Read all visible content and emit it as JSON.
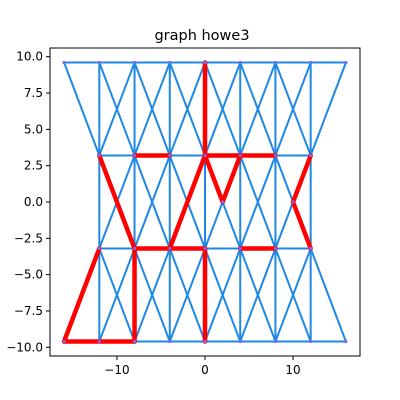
{
  "chart_data": {
    "type": "graph",
    "title": "graph howe3",
    "xlabel": "",
    "ylabel": "",
    "xlim": [
      -17.6,
      17.6
    ],
    "ylim": [
      -10.6,
      10.6
    ],
    "x_ticks": [
      -10,
      0,
      10
    ],
    "x_tick_labels": [
      "−10",
      "0",
      "10"
    ],
    "y_ticks": [
      10.0,
      7.5,
      5.0,
      2.5,
      0.0,
      -2.5,
      -5.0,
      -7.5,
      -10.0
    ],
    "y_tick_labels": [
      "10.0",
      "7.5",
      "5.0",
      "2.5",
      "0.0",
      "−2.5",
      "−5.0",
      "−7.5",
      "−10.0"
    ],
    "grid": false,
    "legend": "none",
    "edge_color": "#1f88e5",
    "highlight_color": "#ff0000",
    "node_color": "#7b68ee",
    "edges": [
      [
        [
          -16,
          9.6
        ],
        [
          16,
          9.6
        ]
      ],
      [
        [
          -16,
          -9.6
        ],
        [
          16,
          -9.6
        ]
      ],
      [
        [
          -12,
          3.2
        ],
        [
          12,
          3.2
        ]
      ],
      [
        [
          -12,
          -3.2
        ],
        [
          12,
          -3.2
        ]
      ],
      [
        [
          -12,
          9.6
        ],
        [
          -12,
          -9.6
        ]
      ],
      [
        [
          -8,
          9.6
        ],
        [
          -8,
          -9.6
        ]
      ],
      [
        [
          -4,
          9.6
        ],
        [
          -4,
          -9.6
        ]
      ],
      [
        [
          0,
          9.6
        ],
        [
          0,
          -9.6
        ]
      ],
      [
        [
          4,
          9.6
        ],
        [
          4,
          -9.6
        ]
      ],
      [
        [
          8,
          9.6
        ],
        [
          8,
          -9.6
        ]
      ],
      [
        [
          12,
          9.6
        ],
        [
          12,
          -9.6
        ]
      ],
      [
        [
          -16,
          9.6
        ],
        [
          -12,
          3.2
        ]
      ],
      [
        [
          -12,
          9.6
        ],
        [
          -8,
          3.2
        ]
      ],
      [
        [
          -8,
          9.6
        ],
        [
          -4,
          3.2
        ]
      ],
      [
        [
          -4,
          9.6
        ],
        [
          0,
          3.2
        ]
      ],
      [
        [
          0,
          9.6
        ],
        [
          4,
          3.2
        ]
      ],
      [
        [
          4,
          9.6
        ],
        [
          8,
          3.2
        ]
      ],
      [
        [
          8,
          9.6
        ],
        [
          12,
          3.2
        ]
      ],
      [
        [
          16,
          9.6
        ],
        [
          12,
          3.2
        ]
      ],
      [
        [
          -8,
          9.6
        ],
        [
          -12,
          3.2
        ]
      ],
      [
        [
          -4,
          9.6
        ],
        [
          -8,
          3.2
        ]
      ],
      [
        [
          0,
          9.6
        ],
        [
          -4,
          3.2
        ]
      ],
      [
        [
          4,
          9.6
        ],
        [
          0,
          3.2
        ]
      ],
      [
        [
          8,
          9.6
        ],
        [
          4,
          3.2
        ]
      ],
      [
        [
          12,
          9.6
        ],
        [
          8,
          3.2
        ]
      ],
      [
        [
          -16,
          -9.6
        ],
        [
          -12,
          -3.2
        ]
      ],
      [
        [
          -12,
          -9.6
        ],
        [
          -8,
          -3.2
        ]
      ],
      [
        [
          -8,
          -9.6
        ],
        [
          -4,
          -3.2
        ]
      ],
      [
        [
          -4,
          -9.6
        ],
        [
          0,
          -3.2
        ]
      ],
      [
        [
          0,
          -9.6
        ],
        [
          4,
          -3.2
        ]
      ],
      [
        [
          4,
          -9.6
        ],
        [
          8,
          -3.2
        ]
      ],
      [
        [
          8,
          -9.6
        ],
        [
          12,
          -3.2
        ]
      ],
      [
        [
          16,
          -9.6
        ],
        [
          12,
          -3.2
        ]
      ],
      [
        [
          -8,
          -9.6
        ],
        [
          -12,
          -3.2
        ]
      ],
      [
        [
          -4,
          -9.6
        ],
        [
          -8,
          -3.2
        ]
      ],
      [
        [
          0,
          -9.6
        ],
        [
          -4,
          -3.2
        ]
      ],
      [
        [
          4,
          -9.6
        ],
        [
          0,
          -3.2
        ]
      ],
      [
        [
          8,
          -9.6
        ],
        [
          4,
          -3.2
        ]
      ],
      [
        [
          12,
          -9.6
        ],
        [
          8,
          -3.2
        ]
      ],
      [
        [
          -12,
          3.2
        ],
        [
          -8,
          -3.2
        ]
      ],
      [
        [
          -8,
          3.2
        ],
        [
          -4,
          -3.2
        ]
      ],
      [
        [
          -4,
          3.2
        ],
        [
          0,
          -3.2
        ]
      ],
      [
        [
          0,
          3.2
        ],
        [
          4,
          -3.2
        ]
      ],
      [
        [
          4,
          3.2
        ],
        [
          8,
          -3.2
        ]
      ],
      [
        [
          8,
          3.2
        ],
        [
          12,
          -3.2
        ]
      ],
      [
        [
          -8,
          3.2
        ],
        [
          -12,
          -3.2
        ]
      ],
      [
        [
          -4,
          3.2
        ],
        [
          -8,
          -3.2
        ]
      ],
      [
        [
          0,
          3.2
        ],
        [
          -4,
          -3.2
        ]
      ],
      [
        [
          4,
          3.2
        ],
        [
          0,
          -3.2
        ]
      ],
      [
        [
          8,
          3.2
        ],
        [
          4,
          -3.2
        ]
      ],
      [
        [
          12,
          3.2
        ],
        [
          8,
          -3.2
        ]
      ]
    ],
    "highlighted_edges": [
      [
        [
          0,
          9.6
        ],
        [
          0,
          3.2
        ]
      ],
      [
        [
          -8,
          3.2
        ],
        [
          -4,
          3.2
        ]
      ],
      [
        [
          0,
          3.2
        ],
        [
          8,
          3.2
        ]
      ],
      [
        [
          0,
          3.2
        ],
        [
          2,
          0
        ]
      ],
      [
        [
          2,
          0
        ],
        [
          4,
          3.2
        ]
      ],
      [
        [
          0,
          3.2
        ],
        [
          -4,
          -3.2
        ]
      ],
      [
        [
          -12,
          3.2
        ],
        [
          -8,
          -3.2
        ]
      ],
      [
        [
          -8,
          -3.2
        ],
        [
          0,
          -3.2
        ]
      ],
      [
        [
          0,
          -3.2
        ],
        [
          0,
          -9.6
        ]
      ],
      [
        [
          4,
          -3.2
        ],
        [
          8,
          -3.2
        ]
      ],
      [
        [
          12,
          3.2
        ],
        [
          10,
          0
        ]
      ],
      [
        [
          10,
          0
        ],
        [
          12,
          -3.2
        ]
      ],
      [
        [
          -12,
          -3.2
        ],
        [
          -16,
          -9.6
        ]
      ],
      [
        [
          -16,
          -9.6
        ],
        [
          -8,
          -9.6
        ]
      ],
      [
        [
          -8,
          -9.6
        ],
        [
          -8,
          -3.2
        ]
      ]
    ],
    "nodes": [
      [
        -16,
        9.6
      ],
      [
        -12,
        9.6
      ],
      [
        -8,
        9.6
      ],
      [
        -4,
        9.6
      ],
      [
        0,
        9.6
      ],
      [
        4,
        9.6
      ],
      [
        8,
        9.6
      ],
      [
        12,
        9.6
      ],
      [
        16,
        9.6
      ],
      [
        -12,
        3.2
      ],
      [
        -8,
        3.2
      ],
      [
        -4,
        3.2
      ],
      [
        0,
        3.2
      ],
      [
        4,
        3.2
      ],
      [
        8,
        3.2
      ],
      [
        12,
        3.2
      ],
      [
        2,
        0
      ],
      [
        10,
        0
      ],
      [
        -12,
        -3.2
      ],
      [
        -8,
        -3.2
      ],
      [
        -4,
        -3.2
      ],
      [
        0,
        -3.2
      ],
      [
        4,
        -3.2
      ],
      [
        8,
        -3.2
      ],
      [
        12,
        -3.2
      ],
      [
        -16,
        -9.6
      ],
      [
        -12,
        -9.6
      ],
      [
        -8,
        -9.6
      ],
      [
        -4,
        -9.6
      ],
      [
        0,
        -9.6
      ],
      [
        4,
        -9.6
      ],
      [
        8,
        -9.6
      ],
      [
        12,
        -9.6
      ],
      [
        16,
        -9.6
      ]
    ]
  }
}
